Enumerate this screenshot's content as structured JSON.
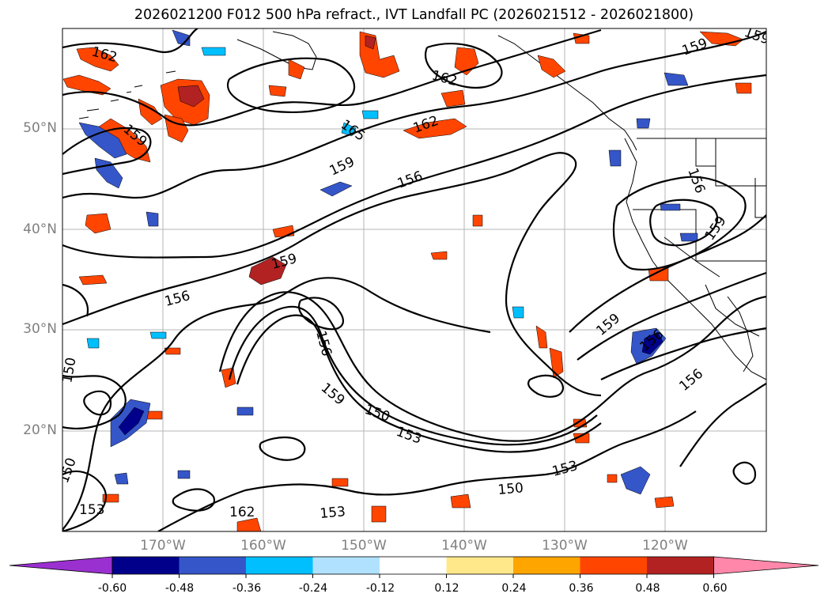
{
  "title": "2026021200 F012 500 hPa refract., IVT Landfall PC (2026021512 - 2026021800)",
  "map": {
    "lat_labels": [
      "50°N",
      "40°N",
      "30°N",
      "20°N"
    ],
    "lon_labels": [
      "170°W",
      "160°W",
      "150°W",
      "140°W",
      "130°W",
      "120°W"
    ],
    "gridlines": true,
    "contour_labels": [
      "162",
      "159",
      "159",
      "162",
      "165",
      "159",
      "156",
      "159",
      "156",
      "156",
      "150",
      "159",
      "150",
      "153",
      "153",
      "150",
      "150",
      "153",
      "159",
      "156",
      "156",
      "153",
      "162",
      "162",
      "159",
      "156",
      "159"
    ]
  },
  "colorbar": {
    "ticks": [
      "-0.60",
      "-0.48",
      "-0.36",
      "-0.24",
      "-0.12",
      "0.12",
      "0.24",
      "0.36",
      "0.48",
      "0.60"
    ],
    "colors": [
      "#9b30d0",
      "#00008b",
      "#3556c8",
      "#00bfff",
      "#b0e2ff",
      "#ffffff",
      "#ffe88a",
      "#ffa500",
      "#ff4500",
      "#b22222",
      "#ff88aa"
    ]
  }
}
